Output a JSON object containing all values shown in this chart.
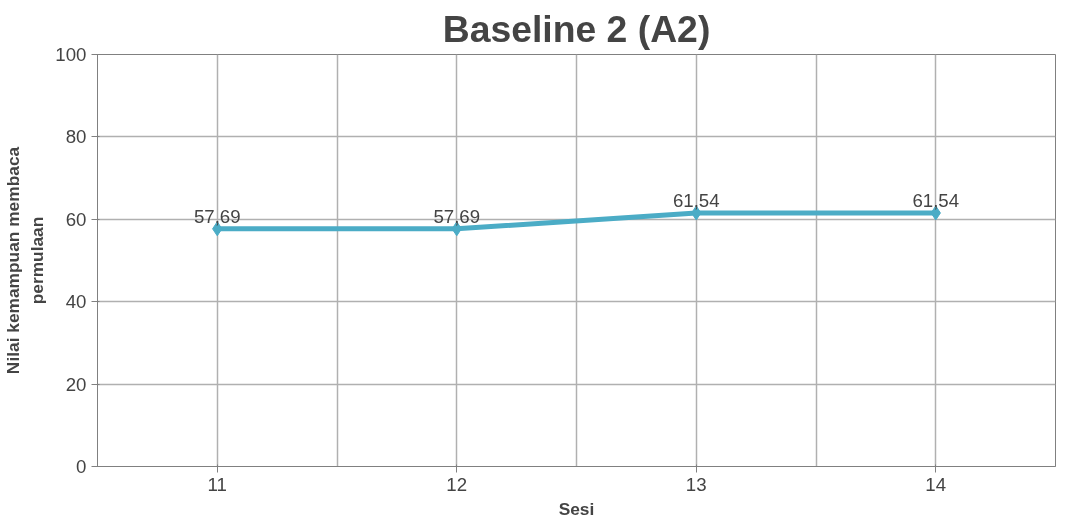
{
  "chart_data": {
    "type": "line",
    "title": "Baseline 2 (A2)",
    "xlabel": "Sesi",
    "ylabel": "Nilai kemampuan membaca\npermulaan",
    "categories": [
      "11",
      "12",
      "13",
      "14"
    ],
    "series": [
      {
        "color": "#4bacc6",
        "values": [
          57.69,
          57.69,
          61.54,
          61.54
        ],
        "value_labels": [
          "57,69",
          "57,69",
          "61,54",
          "61,54"
        ]
      }
    ],
    "ylim": [
      0,
      100
    ],
    "yticks": [
      0,
      20,
      40,
      60,
      80,
      100
    ],
    "grid": true,
    "marker": "diamond",
    "line_style": "solid"
  }
}
